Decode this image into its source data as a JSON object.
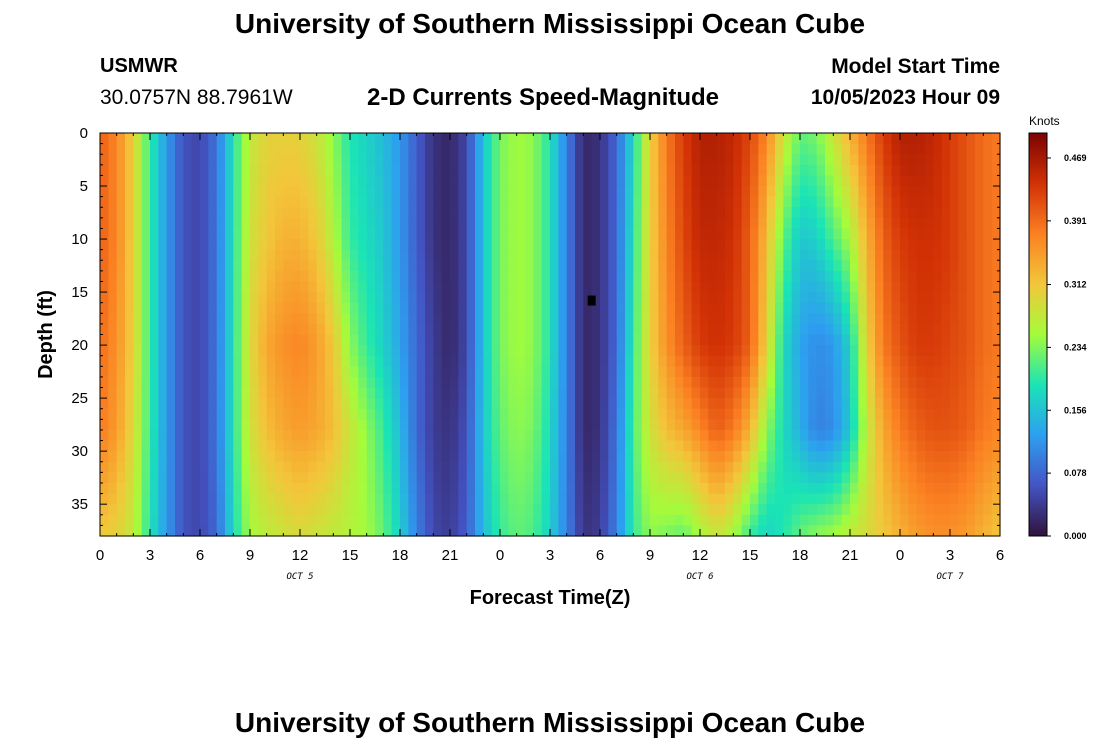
{
  "header": {
    "title": "University of Southern Mississippi Ocean Cube",
    "station": "USMWR",
    "coords": "30.0757N  88.7961W",
    "subtitle": "2-D Currents Speed-Magnitude",
    "start_label": "Model Start Time",
    "start_value": "10/05/2023 Hour 09",
    "footer_title": "University of Southern Mississippi Ocean Cube"
  },
  "chart_data": {
    "type": "heatmap",
    "title": "2-D Currents Speed-Magnitude",
    "xlabel": "Forecast Time(Z)",
    "ylabel": "Depth (ft)",
    "x_tick_labels": [
      "0",
      "3",
      "6",
      "9",
      "12",
      "15",
      "18",
      "21",
      "0",
      "3",
      "6",
      "9",
      "12",
      "15",
      "18",
      "21",
      "0",
      "3",
      "6"
    ],
    "date_labels": [
      {
        "label": "OCT 5",
        "at_hour": 12
      },
      {
        "label": "OCT 6",
        "at_hour": 36
      },
      {
        "label": "OCT 7",
        "at_hour": 51
      }
    ],
    "x_range_hours": [
      0,
      54
    ],
    "y_ticks": [
      0,
      5,
      10,
      15,
      20,
      25,
      30,
      35
    ],
    "y_range": [
      0,
      38
    ],
    "y_inverted": true,
    "colorbar": {
      "unit": "Knots",
      "tick_labels": [
        "0.000",
        "0.078",
        "0.156",
        "0.234",
        "0.312",
        "0.391",
        "0.469"
      ],
      "range": [
        0,
        0.5
      ],
      "colormap": [
        "#30123b",
        "#4454c4",
        "#2d9ff0",
        "#1ae4b6",
        "#a4fc3b",
        "#f3c63a",
        "#fb8022",
        "#d23105",
        "#7a0403"
      ]
    },
    "columns_hours": [
      0,
      1,
      2,
      3,
      4,
      5,
      6,
      7,
      8,
      9,
      10,
      11,
      12,
      13,
      14,
      15,
      16,
      17,
      18,
      19,
      20,
      21,
      22,
      23,
      24,
      25,
      26,
      27,
      28,
      29,
      30,
      31,
      32,
      33,
      34,
      35,
      36,
      37,
      38,
      39,
      40,
      41,
      42,
      43,
      44,
      45,
      46,
      47,
      48,
      49,
      50,
      51,
      52,
      53,
      54
    ],
    "depth_profile_points_ft": [
      0,
      10,
      20,
      28,
      38
    ],
    "values_knots": [
      [
        0.4,
        0.4,
        0.39,
        0.38,
        0.31
      ],
      [
        0.37,
        0.37,
        0.36,
        0.35,
        0.3
      ],
      [
        0.3,
        0.3,
        0.3,
        0.29,
        0.27
      ],
      [
        0.2,
        0.2,
        0.2,
        0.2,
        0.19
      ],
      [
        0.12,
        0.12,
        0.12,
        0.12,
        0.12
      ],
      [
        0.06,
        0.06,
        0.06,
        0.06,
        0.06
      ],
      [
        0.05,
        0.05,
        0.05,
        0.05,
        0.05
      ],
      [
        0.09,
        0.09,
        0.09,
        0.09,
        0.08
      ],
      [
        0.19,
        0.19,
        0.19,
        0.19,
        0.18
      ],
      [
        0.27,
        0.28,
        0.29,
        0.28,
        0.25
      ],
      [
        0.3,
        0.31,
        0.34,
        0.32,
        0.27
      ],
      [
        0.3,
        0.33,
        0.36,
        0.34,
        0.28
      ],
      [
        0.3,
        0.33,
        0.37,
        0.35,
        0.29
      ],
      [
        0.28,
        0.31,
        0.35,
        0.34,
        0.28
      ],
      [
        0.24,
        0.26,
        0.31,
        0.32,
        0.27
      ],
      [
        0.19,
        0.2,
        0.24,
        0.28,
        0.26
      ],
      [
        0.17,
        0.18,
        0.2,
        0.24,
        0.25
      ],
      [
        0.15,
        0.16,
        0.17,
        0.2,
        0.22
      ],
      [
        0.12,
        0.12,
        0.13,
        0.15,
        0.17
      ],
      [
        0.07,
        0.07,
        0.08,
        0.08,
        0.1
      ],
      [
        0.03,
        0.03,
        0.04,
        0.04,
        0.05
      ],
      [
        0.02,
        0.02,
        0.02,
        0.03,
        0.04
      ],
      [
        0.05,
        0.05,
        0.05,
        0.06,
        0.07
      ],
      [
        0.16,
        0.16,
        0.16,
        0.16,
        0.15
      ],
      [
        0.23,
        0.23,
        0.23,
        0.22,
        0.2
      ],
      [
        0.25,
        0.25,
        0.25,
        0.24,
        0.22
      ],
      [
        0.24,
        0.24,
        0.24,
        0.23,
        0.21
      ],
      [
        0.19,
        0.19,
        0.19,
        0.18,
        0.17
      ],
      [
        0.1,
        0.1,
        0.1,
        0.1,
        0.1
      ],
      [
        0.02,
        0.02,
        0.02,
        0.02,
        0.03
      ],
      [
        0.03,
        0.03,
        0.03,
        0.03,
        0.04
      ],
      [
        0.08,
        0.08,
        0.08,
        0.09,
        0.1
      ],
      [
        0.18,
        0.19,
        0.2,
        0.21,
        0.2
      ],
      [
        0.3,
        0.3,
        0.3,
        0.28,
        0.24
      ],
      [
        0.38,
        0.37,
        0.36,
        0.32,
        0.23
      ],
      [
        0.43,
        0.42,
        0.4,
        0.34,
        0.22
      ],
      [
        0.46,
        0.45,
        0.43,
        0.37,
        0.25
      ],
      [
        0.46,
        0.45,
        0.44,
        0.4,
        0.28
      ],
      [
        0.45,
        0.44,
        0.43,
        0.38,
        0.25
      ],
      [
        0.42,
        0.4,
        0.4,
        0.33,
        0.2
      ],
      [
        0.37,
        0.32,
        0.3,
        0.24,
        0.17
      ],
      [
        0.28,
        0.22,
        0.18,
        0.18,
        0.19
      ],
      [
        0.22,
        0.16,
        0.13,
        0.14,
        0.22
      ],
      [
        0.23,
        0.17,
        0.11,
        0.1,
        0.24
      ],
      [
        0.28,
        0.21,
        0.12,
        0.11,
        0.25
      ],
      [
        0.33,
        0.25,
        0.17,
        0.16,
        0.27
      ],
      [
        0.38,
        0.33,
        0.3,
        0.27,
        0.29
      ],
      [
        0.43,
        0.4,
        0.38,
        0.34,
        0.31
      ],
      [
        0.46,
        0.43,
        0.41,
        0.38,
        0.33
      ],
      [
        0.46,
        0.44,
        0.43,
        0.4,
        0.35
      ],
      [
        0.45,
        0.44,
        0.43,
        0.41,
        0.36
      ],
      [
        0.43,
        0.43,
        0.42,
        0.41,
        0.36
      ],
      [
        0.41,
        0.41,
        0.41,
        0.4,
        0.35
      ],
      [
        0.39,
        0.39,
        0.39,
        0.38,
        0.33
      ],
      [
        0.38,
        0.38,
        0.38,
        0.37,
        0.31
      ]
    ],
    "marker": {
      "hour": 29.5,
      "depth_ft": 15.8
    }
  }
}
